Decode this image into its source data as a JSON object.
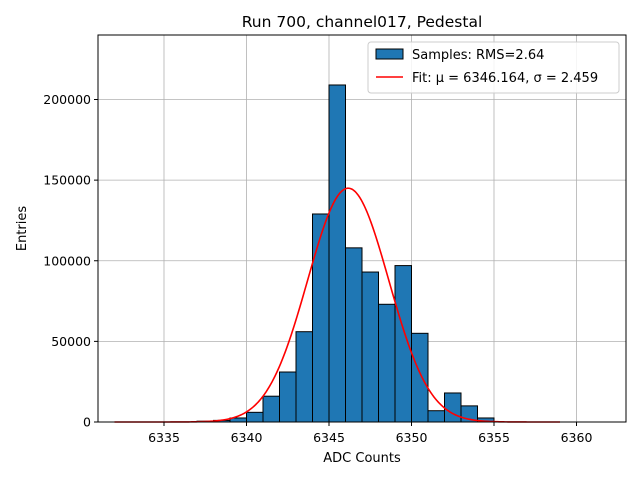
{
  "chart_data": {
    "type": "bar",
    "title": "Run 700, channel017, Pedestal",
    "xlabel": "ADC Counts",
    "ylabel": "Entries",
    "xlim": [
      6331,
      6363
    ],
    "ylim": [
      0,
      240000
    ],
    "xticks": [
      6335,
      6340,
      6345,
      6350,
      6355,
      6360
    ],
    "yticks": [
      0,
      50000,
      100000,
      150000,
      200000
    ],
    "grid": true,
    "bar_color": "#1f77b4",
    "fit_color": "#ff0000",
    "bins": [
      {
        "x0": 6337,
        "x1": 6338,
        "value": 500
      },
      {
        "x0": 6338,
        "x1": 6339,
        "value": 1000
      },
      {
        "x0": 6339,
        "x1": 6340,
        "value": 2500
      },
      {
        "x0": 6340,
        "x1": 6341,
        "value": 6000
      },
      {
        "x0": 6341,
        "x1": 6342,
        "value": 16000
      },
      {
        "x0": 6342,
        "x1": 6343,
        "value": 31000
      },
      {
        "x0": 6343,
        "x1": 6344,
        "value": 56000
      },
      {
        "x0": 6344,
        "x1": 6345,
        "value": 129000
      },
      {
        "x0": 6345,
        "x1": 6346,
        "value": 209000
      },
      {
        "x0": 6346,
        "x1": 6347,
        "value": 108000
      },
      {
        "x0": 6347,
        "x1": 6348,
        "value": 93000
      },
      {
        "x0": 6348,
        "x1": 6349,
        "value": 73000
      },
      {
        "x0": 6349,
        "x1": 6350,
        "value": 97000
      },
      {
        "x0": 6350,
        "x1": 6351,
        "value": 55000
      },
      {
        "x0": 6351,
        "x1": 6352,
        "value": 7000
      },
      {
        "x0": 6352,
        "x1": 6353,
        "value": 18000
      },
      {
        "x0": 6353,
        "x1": 6354,
        "value": 10000
      },
      {
        "x0": 6354,
        "x1": 6355,
        "value": 2500
      }
    ],
    "fit": {
      "mu": 6346.164,
      "sigma": 2.459,
      "amplitude": 145000,
      "x_range": [
        6332,
        6359
      ]
    },
    "legend": {
      "position": "upper right",
      "entries": [
        {
          "label": "Samples: RMS=2.64",
          "kind": "bar"
        },
        {
          "label": "Fit: μ = 6346.164, σ = 2.459",
          "kind": "line"
        }
      ]
    }
  }
}
